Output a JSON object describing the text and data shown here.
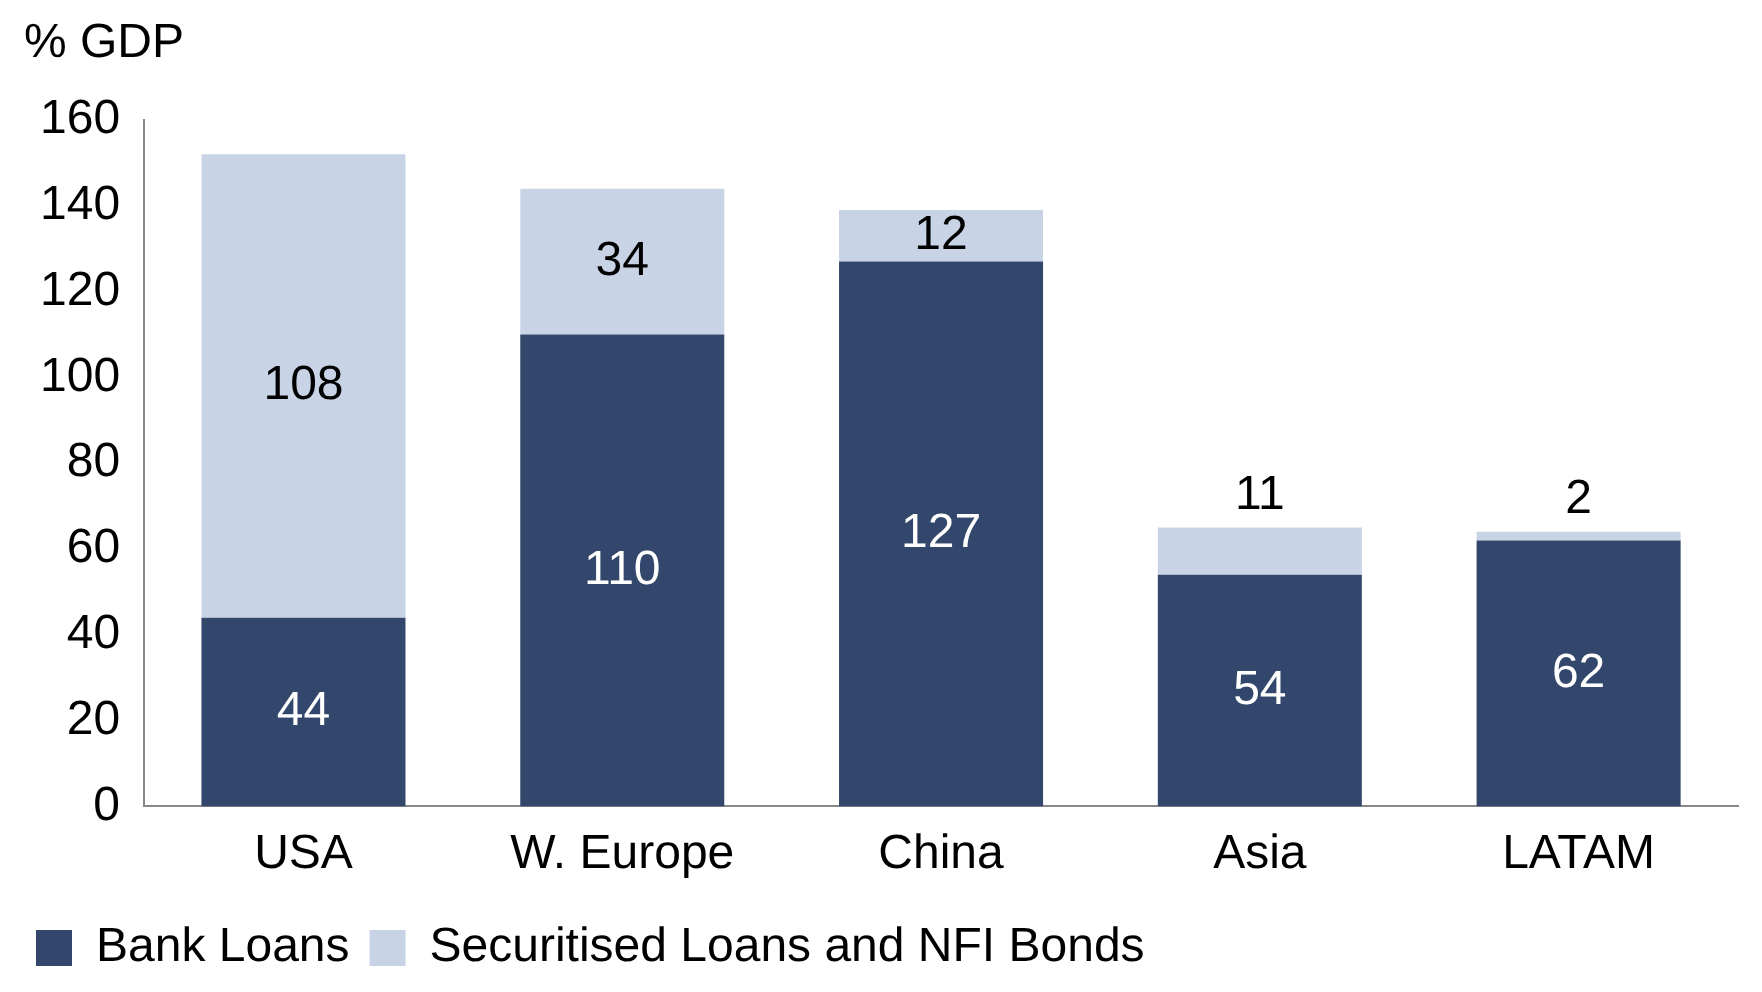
{
  "chart_data": {
    "type": "bar",
    "ylabel": "% GDP",
    "categories": [
      "USA",
      "W. Europe",
      "China",
      "Asia",
      "LATAM"
    ],
    "series": [
      {
        "name": "Bank Loans",
        "color": "#32476b",
        "values": [
          44,
          110,
          127,
          54,
          62
        ]
      },
      {
        "name": "Securitised Loans and NFI Bonds",
        "color": "#c9d3e6",
        "values": [
          108,
          34,
          12,
          11,
          2
        ]
      }
    ],
    "stacked": true,
    "ylim": [
      0,
      160
    ],
    "yticks": [
      0,
      20,
      40,
      60,
      80,
      100,
      120,
      140,
      160
    ],
    "grid": false,
    "legend": "bottom",
    "data_labels": true
  }
}
